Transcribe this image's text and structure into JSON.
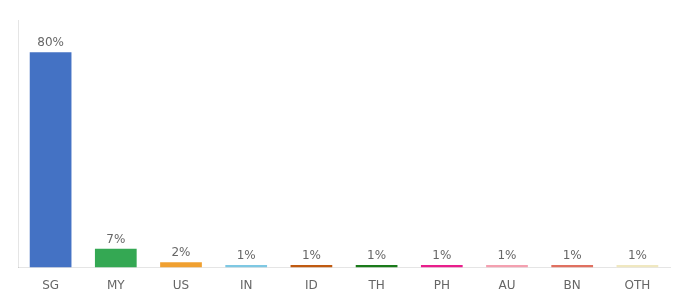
{
  "chart_data": {
    "type": "bar",
    "categories": [
      "SG",
      "MY",
      "US",
      "IN",
      "ID",
      "TH",
      "PH",
      "AU",
      "BN",
      "OTH"
    ],
    "values": [
      80,
      7,
      2,
      1,
      1,
      1,
      1,
      1,
      1,
      1
    ],
    "value_labels": [
      "80%",
      "7%",
      "2%",
      "1%",
      "1%",
      "1%",
      "1%",
      "1%",
      "1%",
      "1%"
    ],
    "colors": [
      "#4472c4",
      "#34a853",
      "#f0a030",
      "#7ec8e3",
      "#c05a10",
      "#1a7a1a",
      "#e91e8c",
      "#f4a0b0",
      "#e07060",
      "#f0e8c0"
    ],
    "ylim": [
      0,
      92
    ],
    "data_labels": true,
    "tick_labels": "x",
    "grid": false
  }
}
